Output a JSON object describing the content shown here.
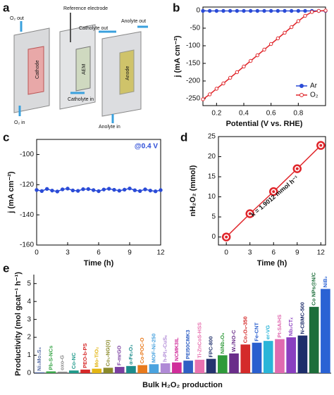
{
  "diagram": {
    "panel": "a",
    "labels": [
      "O₂ out",
      "Reference electrode",
      "Catholyte out",
      "Anolyte out",
      "Cathode",
      "AEM",
      "Anode",
      "O₂ in",
      "Catholyte in",
      "Anolyte in"
    ]
  },
  "chart_data": [
    {
      "type": "line",
      "panel": "b",
      "xlabel": "Potential (V vs. RHE)",
      "ylabel": "j (mA cm⁻²)",
      "x": [
        0.1,
        0.15,
        0.2,
        0.25,
        0.3,
        0.35,
        0.4,
        0.45,
        0.5,
        0.55,
        0.6,
        0.65,
        0.7,
        0.75,
        0.8,
        0.85,
        0.9,
        0.95,
        1.0
      ],
      "series": [
        {
          "name": "Ar",
          "color": "#2a4bd7",
          "values": [
            -1,
            -1,
            -1,
            -1,
            -1,
            -1,
            -1,
            -1,
            -1,
            -1,
            -1,
            -1,
            -1,
            -1,
            -1,
            -1,
            -1,
            -1,
            -1
          ]
        },
        {
          "name": "O₂",
          "color": "#e0262b",
          "values": [
            -252,
            -238,
            -222,
            -207,
            -191,
            -175,
            -159,
            -143,
            -127,
            -111,
            -95,
            -79,
            -63,
            -47,
            -30,
            -15,
            -4,
            -1,
            0
          ]
        }
      ],
      "xlim": [
        0.1,
        1.0
      ],
      "xticks": [
        0.2,
        0.4,
        0.6,
        0.8
      ],
      "ylim": [
        -270,
        10
      ],
      "yticks": [
        0,
        -50,
        -100,
        -150,
        -200,
        -250
      ],
      "legend": "lower right"
    },
    {
      "type": "line",
      "panel": "c",
      "annotation": "@0.4 V",
      "xlabel": "Time (h)",
      "ylabel": "j (mA cm⁻²)",
      "x": [
        0,
        0.5,
        1,
        1.5,
        2,
        2.5,
        3,
        3.5,
        4,
        4.5,
        5,
        5.5,
        6,
        6.5,
        7,
        7.5,
        8,
        8.5,
        9,
        9.5,
        10,
        10.5,
        11,
        11.5,
        12
      ],
      "series": [
        {
          "color": "#2a4bd7",
          "values": [
            -123.5,
            -124.2,
            -122.8,
            -123.9,
            -124.5,
            -123.1,
            -122.6,
            -123.8,
            -124.1,
            -123.0,
            -122.9,
            -123.6,
            -124.3,
            -123.2,
            -122.7,
            -123.4,
            -124.0,
            -123.3,
            -122.5,
            -123.7,
            -124.2,
            -123.1,
            -123.9,
            -124.4,
            -123.6
          ]
        }
      ],
      "xlim": [
        0,
        12
      ],
      "xticks": [
        0,
        3,
        6,
        9,
        12
      ],
      "ylim": [
        -160,
        -90
      ],
      "yticks": [
        -100,
        -120,
        -140,
        -160
      ]
    },
    {
      "type": "line",
      "panel": "d",
      "annotation": "k = 1.9012 mmol h⁻¹",
      "xlabel": "Time (h)",
      "ylabel": "nH₂O₂ (mmol)",
      "x": [
        0,
        3,
        6,
        9,
        12
      ],
      "series": [
        {
          "color": "#e0262b",
          "values": [
            0,
            5.8,
            11.3,
            17,
            22.8
          ]
        }
      ],
      "xlim": [
        -1,
        12.6
      ],
      "xticks": [
        0,
        3,
        6,
        9,
        12
      ],
      "ylim": [
        -2,
        25
      ],
      "yticks": [
        0,
        5,
        10,
        15,
        20,
        25
      ]
    },
    {
      "type": "bar",
      "panel": "e",
      "xlabel": "Bulk H₂O₂ production",
      "ylabel": "Productivity (mol gcat⁻¹ h⁻¹)",
      "categories": [
        "Ni₃Mo₃S₄",
        "Pb-S-NCs",
        "oxo-G",
        "Co-NC",
        "PEO-b-PS",
        "Mo-TiO₂",
        "Co₁-NG(O)",
        "F-mrGO",
        "α-Fe₂O₃",
        "Co-POC-O",
        "MOF-Ni-250",
        "h-Pt₁-CuSₓ",
        "NCMK3IL",
        "PEI50CMK3",
        "Ti-ZnCoS-HSS",
        "FPC-800",
        "NiNb₂O₆",
        "W₁/NO-C",
        "Co₃O₄-350",
        "Fe-CNT",
        "er-VG",
        "Pt-SA/HS",
        "Nb₂CTₓ",
        "N-CBMC-500",
        "Co NPs@N/C",
        "NiB₂"
      ],
      "values": [
        0.05,
        0.1,
        0.08,
        0.15,
        0.2,
        0.25,
        0.3,
        0.35,
        0.4,
        0.45,
        0.5,
        0.55,
        0.6,
        0.7,
        0.75,
        0.8,
        1.0,
        1.1,
        1.6,
        1.7,
        1.8,
        1.9,
        2.0,
        2.1,
        3.7,
        4.7
      ],
      "colors": [
        "#5a6fa8",
        "#3aa64a",
        "#888888",
        "#1f9a8a",
        "#d62828",
        "#e3b512",
        "#8a8a2a",
        "#7a3fa0",
        "#1c8c8c",
        "#e87a1d",
        "#4aa3df",
        "#b08ad6",
        "#d02d9a",
        "#2e5fc4",
        "#e872b0",
        "#24336e",
        "#2f9a3a",
        "#6a2d8a",
        "#d42a2a",
        "#2a5fcf",
        "#2ab5d8",
        "#e06ab0",
        "#8a3fc0",
        "#1d2d6a",
        "#1d6e3a",
        "#2a62d4"
      ],
      "ylim": [
        0,
        5.5
      ],
      "yticks": [
        0,
        1,
        2,
        3,
        4,
        5
      ]
    }
  ]
}
